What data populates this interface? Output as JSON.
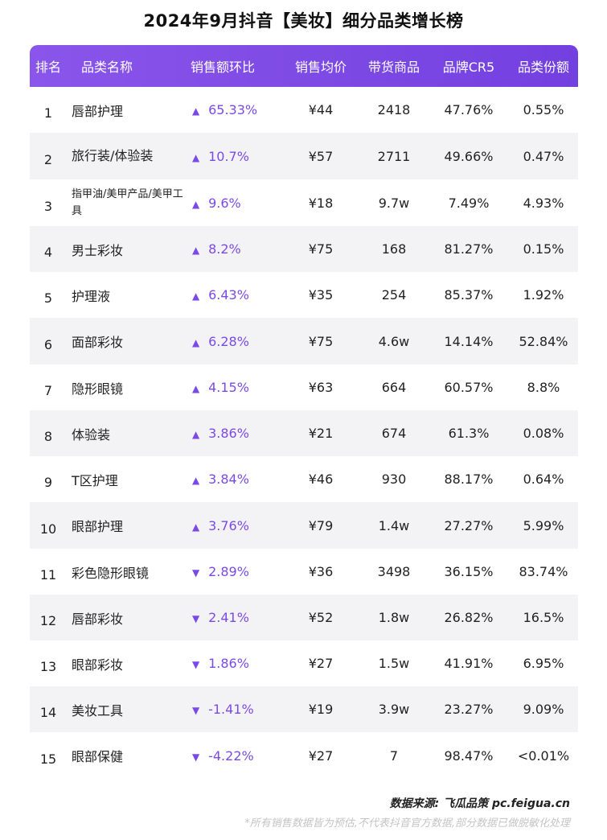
{
  "title": "2024年9月抖音【美妆】细分品类增长榜",
  "headers": {
    "rank": "排名",
    "category": "品类名称",
    "sales_change": "销售额环比",
    "avg_price": "销售均价",
    "goods": "带货商品",
    "brand_cr5": "品牌CR5",
    "category_share": "品类份额"
  },
  "icons": {
    "up": "triangle-up-icon",
    "down": "triangle-down-icon"
  },
  "accent_color": "#7b4ae6",
  "rows": [
    {
      "rank": "1",
      "category": "唇部护理",
      "arrow": "▲",
      "change": "65.33%",
      "price": "¥44",
      "goods": "2418",
      "cr5": "47.76%",
      "share": "0.55%"
    },
    {
      "rank": "2",
      "category": "旅行装/体验装",
      "arrow": "▲",
      "change": "10.7%",
      "price": "¥57",
      "goods": "2711",
      "cr5": "49.66%",
      "share": "0.47%"
    },
    {
      "rank": "3",
      "category": "指甲油/美甲产品/美甲工具",
      "arrow": "▲",
      "change": "9.6%",
      "price": "¥18",
      "goods": "9.7w",
      "cr5": "7.49%",
      "share": "4.93%"
    },
    {
      "rank": "4",
      "category": "男士彩妆",
      "arrow": "▲",
      "change": "8.2%",
      "price": "¥75",
      "goods": "168",
      "cr5": "81.27%",
      "share": "0.15%"
    },
    {
      "rank": "5",
      "category": "护理液",
      "arrow": "▲",
      "change": "6.43%",
      "price": "¥35",
      "goods": "254",
      "cr5": "85.37%",
      "share": "1.92%"
    },
    {
      "rank": "6",
      "category": "面部彩妆",
      "arrow": "▲",
      "change": "6.28%",
      "price": "¥75",
      "goods": "4.6w",
      "cr5": "14.14%",
      "share": "52.84%"
    },
    {
      "rank": "7",
      "category": "隐形眼镜",
      "arrow": "▲",
      "change": "4.15%",
      "price": "¥63",
      "goods": "664",
      "cr5": "60.57%",
      "share": "8.8%"
    },
    {
      "rank": "8",
      "category": "体验装",
      "arrow": "▲",
      "change": "3.86%",
      "price": "¥21",
      "goods": "674",
      "cr5": "61.3%",
      "share": "0.08%"
    },
    {
      "rank": "9",
      "category": "T区护理",
      "arrow": "▲",
      "change": "3.84%",
      "price": "¥46",
      "goods": "930",
      "cr5": "88.17%",
      "share": "0.64%"
    },
    {
      "rank": "10",
      "category": "眼部护理",
      "arrow": "▲",
      "change": "3.76%",
      "price": "¥79",
      "goods": "1.4w",
      "cr5": "27.27%",
      "share": "5.99%"
    },
    {
      "rank": "11",
      "category": "彩色隐形眼镜",
      "arrow": "▼",
      "change": "2.89%",
      "price": "¥36",
      "goods": "3498",
      "cr5": "36.15%",
      "share": "83.74%"
    },
    {
      "rank": "12",
      "category": "唇部彩妆",
      "arrow": "▼",
      "change": "2.41%",
      "price": "¥52",
      "goods": "1.8w",
      "cr5": "26.82%",
      "share": "16.5%"
    },
    {
      "rank": "13",
      "category": "眼部彩妆",
      "arrow": "▼",
      "change": "1.86%",
      "price": "¥27",
      "goods": "1.5w",
      "cr5": "41.91%",
      "share": "6.95%"
    },
    {
      "rank": "14",
      "category": "美妆工具",
      "arrow": "▼",
      "change": "-1.41%",
      "price": "¥19",
      "goods": "3.9w",
      "cr5": "23.27%",
      "share": "9.09%"
    },
    {
      "rank": "15",
      "category": "眼部保健",
      "arrow": "▼",
      "change": "-4.22%",
      "price": "¥27",
      "goods": "7",
      "cr5": "98.47%",
      "share": "<0.01%"
    }
  ],
  "footer": {
    "source": "数据来源:  飞瓜品策  pc.feigua.cn",
    "note": "*所有销售数据皆为预估,不代表抖音官方数据,部分数据已做脱敏化处理"
  }
}
